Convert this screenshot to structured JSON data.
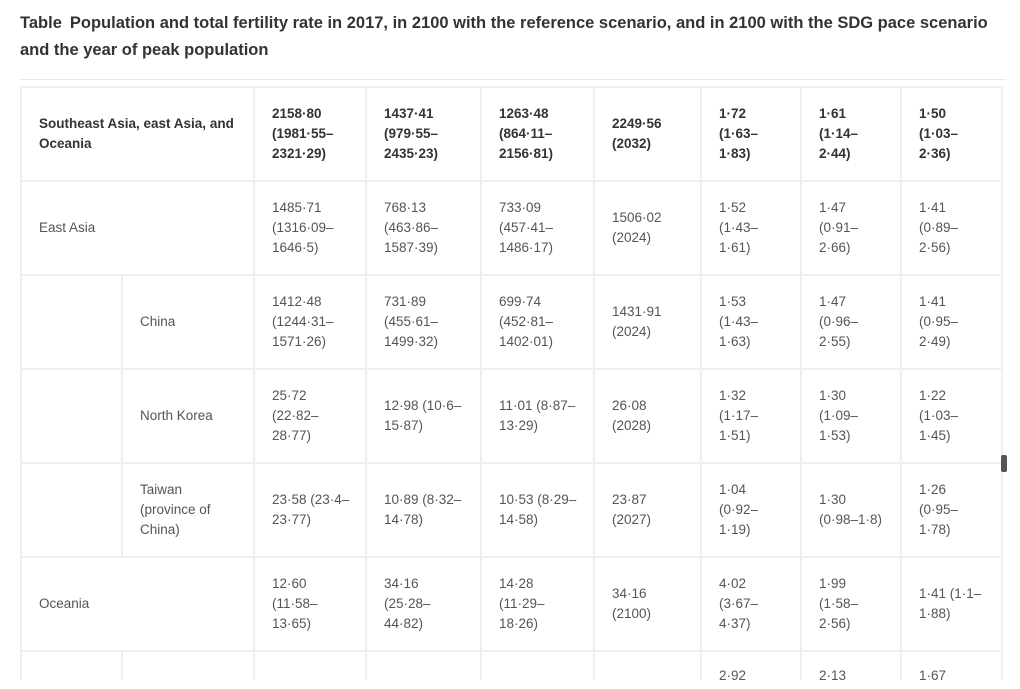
{
  "caption": {
    "label": "Table",
    "title": "Population and total fertility rate in 2017, in 2100 with the reference scenario, and in 2100 with the SDG pace scenario and the year of peak population"
  },
  "table": {
    "header": {
      "region": "Southeast Asia, east Asia, and Oceania",
      "pop2017": "2158·80 (1981·55–2321·29)",
      "pop2100_ref": "1437·41 (979·55–2435·23)",
      "pop2100_sdg": "1263·48 (864·11–2156·81)",
      "peak": "2249·56 (2032)",
      "tfr2017": "1·72 (1·63–1·83)",
      "tfr2100_ref": "1·61 (1·14–2·44)",
      "tfr2100_sdg": "1·50 (1·03–2·36)"
    },
    "rows": [
      {
        "region": "East Asia",
        "country": "",
        "pop2017": "1485·71 (1316·09–1646·5)",
        "pop2100_ref": "768·13 (463·86–1587·39)",
        "pop2100_sdg": "733·09 (457·41–1486·17)",
        "peak": "1506·02 (2024)",
        "tfr2017": "1·52 (1·43–1·61)",
        "tfr2100_ref": "1·47 (0·91–2·66)",
        "tfr2100_sdg": "1·41 (0·89–2·56)"
      },
      {
        "region": "",
        "country": "China",
        "pop2017": "1412·48 (1244·31–1571·26)",
        "pop2100_ref": "731·89 (455·61–1499·32)",
        "pop2100_sdg": "699·74 (452·81–1402·01)",
        "peak": "1431·91 (2024)",
        "tfr2017": "1·53 (1·43–1·63)",
        "tfr2100_ref": "1·47 (0·96–2·55)",
        "tfr2100_sdg": "1·41 (0·95–2·49)"
      },
      {
        "region": "",
        "country": "North Korea",
        "pop2017": "25·72 (22·82–28·77)",
        "pop2100_ref": "12·98 (10·6–15·87)",
        "pop2100_sdg": "11·01 (8·87–13·29)",
        "peak": "26·08 (2028)",
        "tfr2017": "1·32 (1·17–1·51)",
        "tfr2100_ref": "1·30 (1·09–1·53)",
        "tfr2100_sdg": "1·22 (1·03–1·45)"
      },
      {
        "region": "",
        "country": "Taiwan (province of China)",
        "pop2017": "23·58 (23·4–23·77)",
        "pop2100_ref": "10·89 (8·32–14·78)",
        "pop2100_sdg": "10·53 (8·29–14·58)",
        "peak": "23·87 (2027)",
        "tfr2017": "1·04 (0·92–1·19)",
        "tfr2100_ref": "1·30 (0·98–1·8)",
        "tfr2100_sdg": "1·26 (0·95–1·78)"
      },
      {
        "region": "Oceania",
        "country": "",
        "pop2017": "12·60 (11·58–13·65)",
        "pop2100_ref": "34·16 (25·28–44·82)",
        "pop2100_sdg": "14·28 (11·29–18·26)",
        "peak": "34·16 (2100)",
        "tfr2017": "4·02 (3·67–4·37)",
        "tfr2100_ref": "1·99 (1·58–2·56)",
        "tfr2100_sdg": "1·41 (1·1–1·88)"
      },
      {
        "region": "",
        "country": "",
        "pop2017": "",
        "pop2100_ref": "",
        "pop2100_sdg": "",
        "peak": "",
        "tfr2017": "2·92",
        "tfr2100_ref": "2·13",
        "tfr2100_sdg": "1·67"
      }
    ]
  }
}
